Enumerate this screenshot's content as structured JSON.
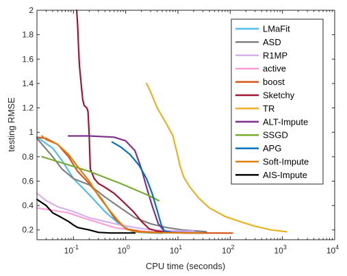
{
  "chart_data": {
    "type": "line",
    "xlabel": "CPU time (seconds)",
    "ylabel": "testing RMSE",
    "x_scale": "log",
    "xlim": [
      0.02,
      10000
    ],
    "ylim": [
      0.12,
      2
    ],
    "x_ticks": [
      {
        "value": 0.1,
        "base": "10",
        "exp": "-1"
      },
      {
        "value": 1,
        "base": "10",
        "exp": "0"
      },
      {
        "value": 10,
        "base": "10",
        "exp": "1"
      },
      {
        "value": 100,
        "base": "10",
        "exp": "2"
      },
      {
        "value": 1000,
        "base": "10",
        "exp": "3"
      },
      {
        "value": 10000,
        "base": "10",
        "exp": "4"
      }
    ],
    "y_ticks": [
      {
        "value": 0.2,
        "label": "0.2"
      },
      {
        "value": 0.4,
        "label": "0.4"
      },
      {
        "value": 0.6,
        "label": "0.6"
      },
      {
        "value": 0.8,
        "label": "0.8"
      },
      {
        "value": 1,
        "label": "1"
      },
      {
        "value": 1.2,
        "label": "1.2"
      },
      {
        "value": 1.4,
        "label": "1.4"
      },
      {
        "value": 1.6,
        "label": "1.6"
      },
      {
        "value": 1.8,
        "label": "1.8"
      },
      {
        "value": 2,
        "label": "2"
      }
    ],
    "grid": false,
    "legend": "top-right",
    "series": [
      {
        "name": "LMaFit",
        "color": "#4dbeee",
        "points": [
          [
            0.02,
            0.96
          ],
          [
            0.04,
            0.87
          ],
          [
            0.06,
            0.77
          ],
          [
            0.1,
            0.62
          ],
          [
            0.2,
            0.49
          ],
          [
            0.4,
            0.35
          ],
          [
            0.7,
            0.26
          ],
          [
            1.0,
            0.22
          ],
          [
            1.3,
            0.19
          ],
          [
            1.8,
            0.18
          ],
          [
            3,
            0.175
          ],
          [
            5,
            0.172
          ]
        ]
      },
      {
        "name": "ASD",
        "color": "#808080",
        "points": [
          [
            0.02,
            0.95
          ],
          [
            0.04,
            0.8
          ],
          [
            0.06,
            0.7
          ],
          [
            0.1,
            0.62
          ],
          [
            0.2,
            0.57
          ],
          [
            0.4,
            0.47
          ],
          [
            0.8,
            0.38
          ],
          [
            1.5,
            0.3
          ],
          [
            3,
            0.25
          ],
          [
            6,
            0.22
          ],
          [
            12,
            0.2
          ],
          [
            25,
            0.19
          ],
          [
            35,
            0.185
          ]
        ]
      },
      {
        "name": "R1MP",
        "color": "#d9aef0",
        "points": [
          [
            0.02,
            0.5
          ],
          [
            0.03,
            0.44
          ],
          [
            0.05,
            0.39
          ],
          [
            0.1,
            0.35
          ],
          [
            0.2,
            0.3
          ],
          [
            0.4,
            0.27
          ],
          [
            0.8,
            0.24
          ],
          [
            1.5,
            0.22
          ],
          [
            3,
            0.2
          ],
          [
            6,
            0.195
          ],
          [
            12,
            0.19
          ],
          [
            20,
            0.19
          ]
        ]
      },
      {
        "name": "active",
        "color": "#ff9ed6",
        "points": [
          [
            0.02,
            0.38
          ],
          [
            0.04,
            0.36
          ],
          [
            0.08,
            0.34
          ],
          [
            0.15,
            0.3
          ],
          [
            0.3,
            0.26
          ],
          [
            0.6,
            0.22
          ],
          [
            1.2,
            0.2
          ],
          [
            2.5,
            0.185
          ],
          [
            5,
            0.18
          ],
          [
            10,
            0.175
          ]
        ]
      },
      {
        "name": "boost",
        "color": "#d95319",
        "points": [
          [
            0.02,
            0.96
          ],
          [
            0.03,
            0.95
          ],
          [
            0.05,
            0.9
          ],
          [
            0.08,
            0.8
          ],
          [
            0.12,
            0.68
          ],
          [
            0.2,
            0.58
          ],
          [
            0.35,
            0.45
          ],
          [
            0.6,
            0.3
          ],
          [
            1.0,
            0.21
          ],
          [
            2,
            0.185
          ],
          [
            5,
            0.178
          ],
          [
            20,
            0.175
          ],
          [
            110,
            0.174
          ]
        ]
      },
      {
        "name": "Sketchy",
        "color": "#a2142f",
        "points": [
          [
            0.115,
            2.0
          ],
          [
            0.12,
            1.88
          ],
          [
            0.125,
            1.7
          ],
          [
            0.13,
            1.55
          ],
          [
            0.14,
            1.4
          ],
          [
            0.15,
            1.27
          ],
          [
            0.16,
            1.22
          ],
          [
            0.18,
            1.2
          ],
          [
            0.19,
            1.17
          ],
          [
            0.2,
            0.98
          ],
          [
            0.21,
            0.7
          ],
          [
            0.25,
            0.62
          ],
          [
            0.3,
            0.58
          ],
          [
            0.4,
            0.55
          ],
          [
            0.6,
            0.5
          ],
          [
            0.9,
            0.43
          ],
          [
            1.4,
            0.35
          ],
          [
            2,
            0.27
          ],
          [
            2.8,
            0.21
          ],
          [
            4,
            0.19
          ],
          [
            7,
            0.18
          ],
          [
            15,
            0.175
          ],
          [
            30,
            0.174
          ]
        ]
      },
      {
        "name": "TR",
        "color": "#edb120",
        "points": [
          [
            2.5,
            1.4
          ],
          [
            3,
            1.33
          ],
          [
            4,
            1.2
          ],
          [
            6,
            1.07
          ],
          [
            8,
            0.97
          ],
          [
            9,
            0.88
          ],
          [
            10,
            0.8
          ],
          [
            11,
            0.72
          ],
          [
            13,
            0.63
          ],
          [
            17,
            0.55
          ],
          [
            25,
            0.46
          ],
          [
            40,
            0.38
          ],
          [
            80,
            0.31
          ],
          [
            150,
            0.27
          ],
          [
            300,
            0.23
          ],
          [
            600,
            0.2
          ],
          [
            1200,
            0.185
          ]
        ]
      },
      {
        "name": "ALT-Impute",
        "color": "#7e2f8e",
        "points": [
          [
            0.08,
            0.97
          ],
          [
            0.2,
            0.97
          ],
          [
            0.6,
            0.96
          ],
          [
            1.0,
            0.93
          ],
          [
            1.5,
            0.85
          ],
          [
            2.0,
            0.7
          ],
          [
            2.5,
            0.55
          ],
          [
            3.2,
            0.4
          ],
          [
            4.2,
            0.25
          ],
          [
            5.5,
            0.19
          ],
          [
            8,
            0.18
          ],
          [
            15,
            0.178
          ],
          [
            30,
            0.176
          ]
        ]
      },
      {
        "name": "SSGD",
        "color": "#77ac30",
        "points": [
          [
            0.025,
            0.8
          ],
          [
            0.05,
            0.76
          ],
          [
            0.1,
            0.72
          ],
          [
            0.2,
            0.68
          ],
          [
            0.4,
            0.63
          ],
          [
            0.8,
            0.58
          ],
          [
            1.5,
            0.53
          ],
          [
            2.5,
            0.49
          ],
          [
            3.5,
            0.46
          ],
          [
            4.3,
            0.44
          ]
        ]
      },
      {
        "name": "APG",
        "color": "#0072bd",
        "points": [
          [
            0.55,
            0.92
          ],
          [
            0.8,
            0.88
          ],
          [
            1.2,
            0.82
          ],
          [
            1.8,
            0.73
          ],
          [
            2.5,
            0.62
          ],
          [
            3.2,
            0.5
          ],
          [
            4,
            0.36
          ],
          [
            4.8,
            0.24
          ],
          [
            5.5,
            0.19
          ],
          [
            7,
            0.18
          ],
          [
            12,
            0.176
          ],
          [
            25,
            0.175
          ]
        ]
      },
      {
        "name": "Soft-Impute",
        "color": "#e07f10",
        "points": [
          [
            0.025,
            0.97
          ],
          [
            0.03,
            0.94
          ],
          [
            0.05,
            0.9
          ],
          [
            0.08,
            0.82
          ],
          [
            0.12,
            0.72
          ],
          [
            0.2,
            0.6
          ],
          [
            0.3,
            0.48
          ],
          [
            0.45,
            0.38
          ],
          [
            0.7,
            0.28
          ],
          [
            1.0,
            0.21
          ],
          [
            1.5,
            0.185
          ],
          [
            3,
            0.178
          ],
          [
            10,
            0.176
          ],
          [
            30,
            0.175
          ]
        ]
      },
      {
        "name": "AIS-Impute",
        "color": "#000000",
        "points": [
          [
            0.02,
            0.45
          ],
          [
            0.03,
            0.4
          ],
          [
            0.04,
            0.34
          ],
          [
            0.06,
            0.3
          ],
          [
            0.08,
            0.27
          ],
          [
            0.1,
            0.24
          ],
          [
            0.12,
            0.22
          ],
          [
            0.2,
            0.2
          ],
          [
            0.3,
            0.18
          ],
          [
            0.5,
            0.175
          ],
          [
            1.0,
            0.175
          ],
          [
            1.5,
            0.175
          ]
        ]
      }
    ]
  }
}
